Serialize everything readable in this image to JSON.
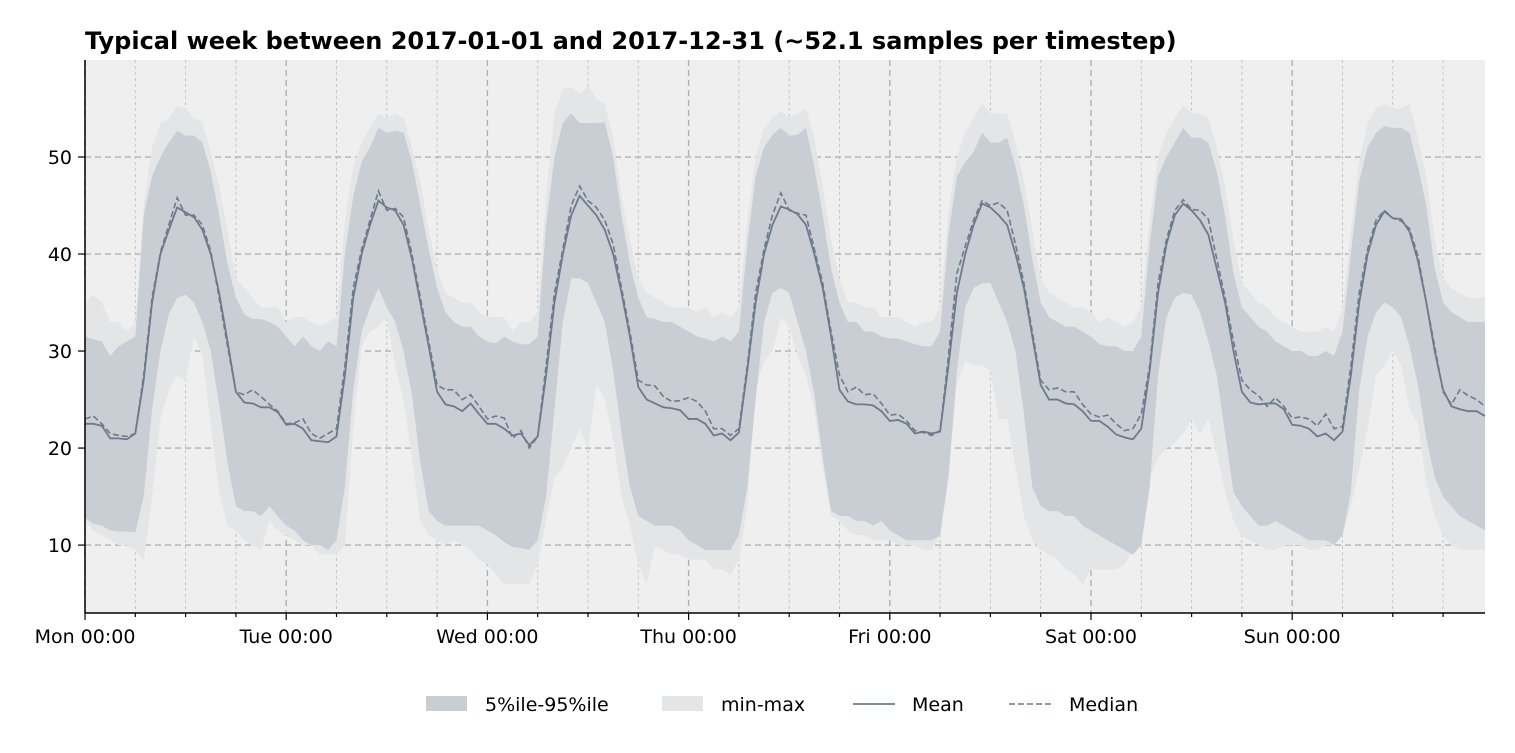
{
  "chart_data": {
    "type": "area",
    "title": "Typical week between 2017-01-01 and 2017-12-31 (~52.1 samples per timestep)",
    "xlabel": "",
    "ylabel": "",
    "xlim": [
      0,
      167
    ],
    "ylim": [
      3,
      60
    ],
    "x_unit": "hours since Mon 00:00",
    "x_ticks": [
      {
        "x": 0,
        "label": "Mon 00:00"
      },
      {
        "x": 24,
        "label": "Tue 00:00"
      },
      {
        "x": 48,
        "label": "Wed 00:00"
      },
      {
        "x": 72,
        "label": "Thu 00:00"
      },
      {
        "x": 96,
        "label": "Fri 00:00"
      },
      {
        "x": 120,
        "label": "Sat 00:00"
      },
      {
        "x": 144,
        "label": "Sun 00:00"
      }
    ],
    "y_ticks": [
      10,
      20,
      30,
      40,
      50
    ],
    "grid": true,
    "colors": {
      "band_p5_p95": "#c9ced4",
      "band_min_max": "#e3e5e7",
      "plot_background": "#efefef",
      "mean_line": "#6c7a8c",
      "median_line": "#6c7a8c",
      "grid_major": "#b0b0b0",
      "grid_minor": "#c4c4c4"
    },
    "legend": {
      "position": "bottom-center",
      "entries": [
        {
          "label": "5%ile-95%ile",
          "kind": "band_p5_p95"
        },
        {
          "label": "min-max",
          "kind": "band_min_max"
        },
        {
          "label": "Mean",
          "kind": "mean"
        },
        {
          "label": "Median",
          "kind": "median"
        }
      ]
    },
    "series": [
      {
        "name": "Mean",
        "values": [
          22.5,
          22.5,
          22.3,
          21.0,
          21.0,
          20.9,
          21.5,
          27.0,
          35.0,
          40.0,
          42.5,
          44.8,
          44.3,
          43.8,
          42.5,
          40.0,
          36.0,
          31.0,
          25.8,
          24.7,
          24.6,
          24.2,
          24.2,
          23.7,
          22.4,
          22.5,
          22.0,
          20.8,
          20.7,
          20.6,
          21.2,
          27.5,
          35.5,
          40.0,
          43.0,
          45.5,
          44.8,
          44.5,
          43.0,
          39.5,
          35.0,
          30.5,
          25.8,
          24.5,
          24.3,
          23.8,
          24.6,
          23.5,
          22.5,
          22.5,
          22.0,
          21.3,
          21.5,
          20.3,
          21.2,
          27.5,
          35.0,
          40.0,
          44.0,
          46.0,
          45.0,
          44.0,
          42.5,
          40.0,
          36.0,
          31.5,
          26.3,
          25.0,
          24.6,
          24.2,
          24.1,
          23.9,
          23.0,
          23.0,
          22.5,
          21.3,
          21.5,
          20.8,
          21.6,
          28.0,
          35.0,
          40.0,
          43.0,
          44.9,
          44.6,
          44.1,
          43.0,
          40.0,
          36.5,
          31.5,
          26.0,
          24.8,
          24.5,
          24.5,
          24.4,
          23.8,
          22.8,
          22.9,
          22.5,
          21.5,
          21.7,
          21.5,
          21.7,
          28.5,
          36.0,
          40.0,
          43.0,
          45.2,
          44.8,
          44.0,
          43.0,
          40.0,
          36.5,
          31.5,
          26.5,
          25.0,
          25.0,
          24.6,
          24.5,
          23.8,
          22.8,
          22.8,
          22.2,
          21.4,
          21.1,
          20.9,
          22.0,
          28.0,
          36.0,
          41.0,
          44.0,
          45.2,
          44.5,
          43.5,
          42.0,
          38.5,
          35.0,
          30.0,
          25.8,
          24.7,
          24.5,
          24.6,
          24.6,
          24.0,
          22.4,
          22.3,
          22.0,
          21.2,
          21.5,
          20.8,
          21.7,
          27.5,
          35.0,
          40.0,
          43.0,
          44.4,
          43.7,
          43.6,
          42.3,
          39.3,
          35.0,
          30.0,
          26.0,
          24.3,
          24.0,
          23.8,
          23.8,
          23.3
        ]
      },
      {
        "name": "Median",
        "values": [
          23.0,
          23.3,
          22.5,
          21.5,
          21.3,
          21.2,
          21.5,
          27.5,
          35.5,
          40.2,
          43.0,
          45.8,
          44.0,
          44.0,
          43.0,
          40.3,
          35.5,
          30.5,
          25.8,
          25.5,
          26.0,
          25.3,
          24.5,
          23.8,
          22.5,
          22.6,
          23.0,
          21.5,
          21.0,
          21.5,
          22.0,
          28.5,
          36.5,
          40.5,
          43.5,
          46.5,
          44.5,
          44.7,
          43.8,
          40.0,
          35.5,
          31.0,
          26.5,
          26.0,
          26.0,
          25.0,
          25.5,
          24.3,
          23.0,
          23.3,
          23.1,
          21.0,
          21.8,
          20.0,
          21.2,
          28.5,
          36.0,
          40.5,
          45.0,
          47.0,
          45.5,
          44.8,
          43.5,
          41.0,
          36.5,
          32.0,
          27.0,
          26.5,
          26.4,
          25.3,
          24.8,
          24.9,
          25.2,
          24.8,
          23.8,
          22.0,
          22.0,
          21.3,
          22.0,
          28.5,
          36.0,
          40.5,
          44.0,
          46.3,
          44.5,
          44.2,
          44.0,
          40.5,
          37.0,
          32.0,
          27.5,
          25.8,
          26.3,
          25.5,
          25.6,
          24.6,
          23.4,
          23.5,
          22.8,
          21.8,
          21.6,
          21.3,
          21.8,
          29.5,
          38.0,
          40.8,
          43.5,
          45.5,
          45.0,
          45.3,
          44.5,
          41.0,
          37.0,
          32.0,
          27.0,
          26.0,
          26.2,
          25.8,
          25.8,
          24.5,
          23.5,
          23.2,
          23.4,
          22.5,
          21.8,
          22.0,
          23.5,
          28.5,
          37.0,
          41.5,
          44.5,
          45.6,
          44.6,
          44.5,
          43.6,
          39.5,
          35.5,
          31.0,
          27.0,
          26.0,
          25.4,
          24.3,
          25.2,
          24.3,
          23.1,
          23.2,
          23.0,
          22.3,
          23.5,
          22.0,
          22.2,
          28.5,
          36.0,
          40.5,
          43.5,
          44.5,
          43.7,
          43.4,
          42.6,
          39.8,
          35.0,
          30.5,
          25.8,
          24.5,
          26.0,
          25.4,
          25.0,
          24.3
        ]
      },
      {
        "name": "p5",
        "values": [
          12.8,
          12.2,
          12.0,
          11.5,
          11.4,
          11.4,
          11.3,
          15.0,
          24.0,
          30.0,
          33.8,
          35.5,
          35.8,
          35.0,
          33.0,
          30.0,
          24.5,
          18.5,
          14.0,
          13.5,
          13.5,
          13.0,
          14.0,
          13.0,
          12.0,
          11.5,
          10.5,
          10.0,
          10.0,
          9.5,
          10.5,
          16.0,
          26.0,
          32.0,
          34.5,
          36.5,
          34.5,
          33.0,
          30.0,
          25.5,
          18.5,
          13.5,
          12.5,
          12.0,
          12.0,
          12.0,
          12.0,
          12.0,
          11.5,
          11.0,
          10.3,
          9.8,
          9.7,
          9.5,
          10.5,
          15.0,
          24.0,
          33.0,
          37.5,
          37.5,
          37.0,
          35.0,
          33.0,
          28.0,
          21.5,
          16.0,
          13.0,
          12.5,
          12.0,
          12.0,
          12.0,
          11.5,
          10.5,
          10.0,
          9.5,
          9.5,
          9.5,
          9.5,
          11.0,
          16.0,
          25.0,
          33.0,
          36.0,
          36.5,
          36.0,
          33.0,
          30.0,
          25.5,
          19.0,
          13.5,
          13.0,
          13.0,
          12.5,
          12.5,
          12.0,
          12.5,
          11.5,
          11.0,
          10.5,
          10.5,
          10.5,
          10.5,
          11.0,
          17.0,
          28.0,
          34.5,
          36.5,
          37.0,
          37.0,
          35.0,
          33.0,
          30.0,
          23.5,
          16.0,
          14.0,
          13.5,
          13.5,
          13.0,
          13.0,
          12.0,
          11.5,
          11.0,
          10.5,
          10.0,
          9.5,
          9.0,
          10.0,
          16.0,
          27.5,
          33.5,
          35.5,
          36.0,
          35.8,
          34.0,
          31.0,
          27.5,
          21.5,
          15.5,
          14.0,
          13.0,
          12.0,
          12.0,
          12.5,
          12.0,
          11.5,
          11.0,
          10.5,
          10.5,
          10.5,
          10.0,
          11.0,
          15.5,
          26.0,
          31.5,
          34.0,
          35.0,
          34.5,
          33.5,
          30.5,
          26.5,
          21.0,
          17.0,
          15.0,
          14.0,
          13.0,
          12.5,
          12.0,
          11.5
        ]
      },
      {
        "name": "p95",
        "values": [
          31.5,
          31.2,
          31.0,
          29.5,
          30.5,
          31.0,
          31.5,
          44.0,
          48.0,
          50.0,
          51.5,
          52.7,
          52.2,
          52.2,
          51.5,
          48.5,
          44.0,
          39.0,
          35.5,
          33.8,
          33.3,
          33.3,
          33.0,
          32.5,
          31.5,
          30.5,
          31.5,
          30.5,
          30.0,
          31.0,
          30.5,
          40.0,
          46.0,
          49.5,
          51.0,
          53.0,
          52.5,
          52.7,
          52.5,
          49.5,
          45.0,
          40.5,
          36.5,
          34.0,
          33.0,
          32.5,
          32.5,
          31.5,
          31.0,
          30.8,
          31.5,
          31.0,
          30.7,
          30.7,
          31.5,
          43.0,
          50.0,
          53.5,
          54.5,
          53.5,
          53.5,
          53.5,
          53.6,
          50.0,
          44.0,
          39.0,
          35.5,
          33.5,
          33.3,
          33.0,
          33.0,
          32.5,
          32.0,
          31.5,
          31.3,
          31.0,
          31.5,
          31.0,
          32.0,
          41.0,
          48.0,
          51.0,
          52.3,
          53.0,
          52.2,
          52.3,
          53.0,
          49.0,
          44.0,
          38.5,
          35.0,
          33.0,
          33.0,
          32.0,
          32.0,
          31.5,
          31.3,
          31.3,
          31.0,
          30.7,
          30.5,
          30.5,
          32.0,
          42.0,
          48.0,
          49.5,
          50.5,
          52.5,
          51.5,
          51.5,
          52.0,
          49.0,
          45.0,
          39.5,
          35.0,
          33.5,
          33.0,
          32.5,
          32.5,
          32.0,
          31.5,
          30.7,
          30.5,
          30.5,
          30.0,
          30.0,
          31.5,
          41.0,
          48.0,
          50.0,
          51.5,
          53.0,
          52.0,
          52.0,
          51.5,
          48.5,
          44.0,
          38.0,
          34.5,
          33.5,
          32.5,
          32.0,
          31.0,
          30.5,
          30.0,
          30.0,
          29.5,
          29.5,
          30.0,
          29.5,
          32.0,
          40.0,
          47.5,
          51.0,
          52.5,
          53.2,
          53.0,
          53.0,
          52.5,
          49.0,
          45.0,
          38.5,
          35.0,
          34.0,
          33.5,
          33.0,
          33.0,
          33.0
        ]
      },
      {
        "name": "min",
        "values": [
          12.5,
          11.5,
          11.0,
          10.5,
          10.0,
          10.0,
          9.5,
          8.5,
          15.0,
          23.0,
          26.0,
          27.5,
          27.0,
          31.5,
          29.5,
          22.5,
          15.5,
          12.0,
          11.5,
          10.5,
          10.0,
          9.5,
          12.5,
          11.5,
          11.0,
          10.5,
          10.0,
          10.0,
          9.0,
          9.0,
          9.0,
          10.0,
          22.0,
          30.5,
          32.0,
          32.5,
          33.5,
          28.5,
          25.0,
          19.0,
          12.5,
          11.0,
          10.5,
          10.0,
          10.5,
          10.0,
          9.5,
          8.5,
          8.0,
          7.0,
          6.0,
          6.0,
          6.0,
          6.0,
          8.0,
          12.5,
          17.0,
          18.0,
          20.0,
          22.0,
          20.0,
          26.5,
          25.0,
          21.0,
          15.0,
          12.0,
          8.0,
          6.0,
          10.0,
          9.5,
          9.0,
          9.0,
          8.5,
          8.5,
          8.5,
          7.5,
          7.5,
          7.0,
          8.5,
          14.0,
          26.0,
          29.0,
          30.0,
          33.5,
          32.5,
          29.5,
          27.5,
          24.0,
          18.0,
          13.0,
          12.5,
          11.5,
          11.0,
          11.0,
          10.5,
          10.5,
          10.5,
          10.0,
          10.0,
          10.0,
          9.5,
          9.5,
          11.0,
          17.0,
          26.5,
          29.0,
          28.5,
          28.5,
          28.0,
          23.0,
          23.0,
          18.0,
          13.0,
          10.5,
          9.5,
          9.0,
          8.5,
          7.5,
          7.0,
          6.0,
          7.5,
          7.5,
          7.5,
          7.5,
          8.0,
          9.5,
          12.0,
          17.0,
          19.0,
          20.0,
          20.5,
          21.5,
          23.0,
          21.5,
          23.0,
          19.5,
          15.5,
          12.5,
          11.0,
          10.5,
          10.0,
          9.5,
          9.5,
          10.0,
          10.0,
          10.0,
          9.5,
          9.5,
          10.0,
          10.0,
          11.0,
          14.0,
          18.0,
          22.0,
          27.5,
          28.5,
          30.0,
          28.5,
          24.0,
          22.5,
          16.5,
          13.0,
          11.0,
          10.0,
          9.5,
          9.5,
          9.5,
          9.5
        ]
      },
      {
        "name": "max",
        "values": [
          35.0,
          35.8,
          35.0,
          33.0,
          33.0,
          32.0,
          33.0,
          45.0,
          51.0,
          53.5,
          54.0,
          55.3,
          55.0,
          54.0,
          53.5,
          50.5,
          47.0,
          42.5,
          37.5,
          36.5,
          35.5,
          34.5,
          34.5,
          34.5,
          33.0,
          33.5,
          33.5,
          33.0,
          32.5,
          33.0,
          33.5,
          43.5,
          49.0,
          51.5,
          53.0,
          54.5,
          54.0,
          54.5,
          54.0,
          51.0,
          47.5,
          42.5,
          38.5,
          36.0,
          35.5,
          35.0,
          35.0,
          34.0,
          33.5,
          33.5,
          33.5,
          32.0,
          33.0,
          33.0,
          34.0,
          46.0,
          54.5,
          57.0,
          57.2,
          56.5,
          57.3,
          56.0,
          55.5,
          52.0,
          46.0,
          41.5,
          37.5,
          36.0,
          35.5,
          35.0,
          34.5,
          34.5,
          34.5,
          34.0,
          34.5,
          33.5,
          34.0,
          33.5,
          34.5,
          43.5,
          50.0,
          53.0,
          54.0,
          54.8,
          54.0,
          54.5,
          55.0,
          52.0,
          47.0,
          41.5,
          37.5,
          35.0,
          35.0,
          34.5,
          34.5,
          33.5,
          33.5,
          33.5,
          33.0,
          32.5,
          33.0,
          33.0,
          34.5,
          44.5,
          50.0,
          52.5,
          54.0,
          55.5,
          54.5,
          54.5,
          54.5,
          51.5,
          47.5,
          42.5,
          37.5,
          36.0,
          35.5,
          35.0,
          34.5,
          34.5,
          34.0,
          33.0,
          33.5,
          33.0,
          32.5,
          33.0,
          34.5,
          43.5,
          50.0,
          52.5,
          54.0,
          55.3,
          54.5,
          54.5,
          54.0,
          51.0,
          47.0,
          41.5,
          37.0,
          36.0,
          35.0,
          34.5,
          33.5,
          33.0,
          32.5,
          32.0,
          32.0,
          32.0,
          32.5,
          32.0,
          34.5,
          42.5,
          49.5,
          53.5,
          55.0,
          55.5,
          55.0,
          55.0,
          55.5,
          52.0,
          48.0,
          41.5,
          37.5,
          36.5,
          36.0,
          35.5,
          35.5,
          35.5
        ]
      }
    ]
  }
}
